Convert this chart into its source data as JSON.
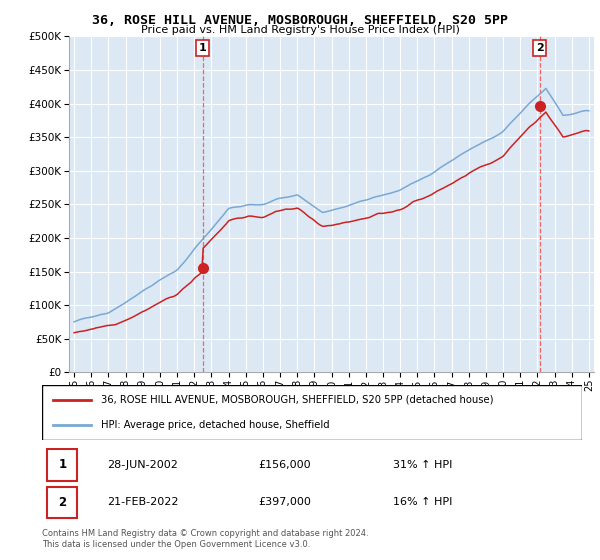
{
  "title": "36, ROSE HILL AVENUE, MOSBOROUGH, SHEFFIELD, S20 5PP",
  "subtitle": "Price paid vs. HM Land Registry's House Price Index (HPI)",
  "background_color": "#ffffff",
  "plot_bg_color": "#dce9f5",
  "grid_color": "#ffffff",
  "hpi_color": "#7aa8d4",
  "price_color": "#cc2222",
  "sale1_date_num": 2002.49,
  "sale1_price": 156000,
  "sale2_date_num": 2022.13,
  "sale2_price": 397000,
  "legend_label_price": "36, ROSE HILL AVENUE, MOSBOROUGH, SHEFFIELD, S20 5PP (detached house)",
  "legend_label_hpi": "HPI: Average price, detached house, Sheffield",
  "annotation1_date": "28-JUN-2002",
  "annotation1_price": "£156,000",
  "annotation1_hpi": "31% ↑ HPI",
  "annotation2_date": "21-FEB-2022",
  "annotation2_price": "£397,000",
  "annotation2_hpi": "16% ↑ HPI",
  "footer": "Contains HM Land Registry data © Crown copyright and database right 2024.\nThis data is licensed under the Open Government Licence v3.0.",
  "ylim": [
    0,
    500000
  ],
  "xlim_start": 1994.7,
  "xlim_end": 2025.3,
  "yticks": [
    0,
    50000,
    100000,
    150000,
    200000,
    250000,
    300000,
    350000,
    400000,
    450000,
    500000
  ]
}
